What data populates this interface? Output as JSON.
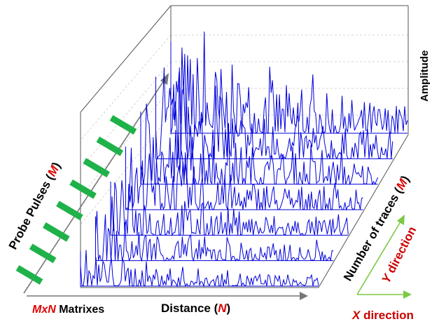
{
  "labels": {
    "amplitude": "Amplitude",
    "probe_prefix": "Probe Pulses (",
    "probe_var": "M",
    "probe_suffix": ")",
    "matrix_var": "MxN",
    "matrix_word": " Matrixes",
    "distance_prefix": "Distance (",
    "distance_var": "N",
    "distance_suffix": ")",
    "traces_prefix": "Number of traces (",
    "traces_var": "M",
    "traces_suffix": ")",
    "y_var": "Y",
    "y_word": " direction",
    "x_var": "X",
    "x_word": " direction"
  },
  "colors": {
    "trace": "#0000dd",
    "pulse": "#1fb24a",
    "var_red": "#dd0000",
    "dir_green": "#7ac943",
    "frame": "#555555",
    "grid": "#c8c8c8",
    "text": "#000000"
  },
  "diagram": {
    "trace_count": 7,
    "pulse_count": 8
  }
}
